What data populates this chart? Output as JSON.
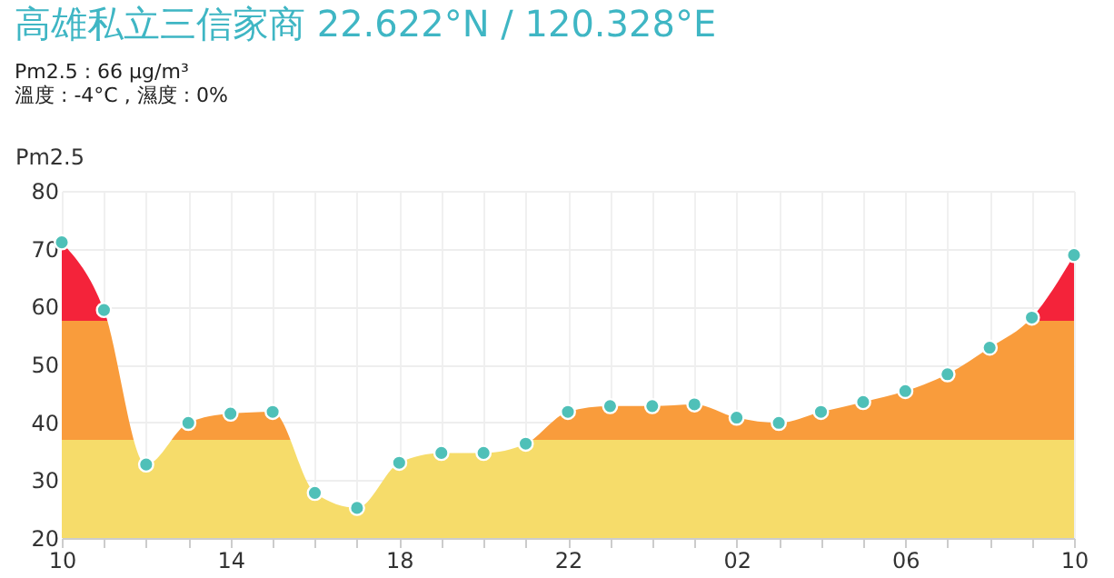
{
  "chart_data": {
    "type": "area",
    "title": "高雄私立三信家商   22.622°N / 120.328°E",
    "subtitle": "Pm2.5 : 66 μg/m³",
    "annotations": [
      "溫度 : -4°C , 濕度 : 0%"
    ],
    "ylabel": "Pm2.5",
    "categories": [
      "10",
      null,
      null,
      null,
      "14",
      null,
      null,
      null,
      "18",
      null,
      null,
      null,
      "22",
      null,
      null,
      null,
      "02",
      null,
      null,
      null,
      "06",
      null,
      null,
      null,
      "10"
    ],
    "series": [
      {
        "color": "#f99c3c",
        "values": [
          71.1,
          59.4,
          32.7,
          39.9,
          41.5,
          41.8,
          27.8,
          25.2,
          33,
          34.7,
          34.7,
          36.3,
          41.8,
          42.8,
          42.8,
          43.1,
          40.8,
          39.9,
          41.8,
          43.5,
          45.4,
          48.3,
          52.9,
          58.1,
          68.9
        ]
      }
    ],
    "ylim": [
      20,
      80
    ],
    "yticks": [
      20,
      30,
      40,
      50,
      60,
      70,
      80
    ],
    "grid": true,
    "marker": "circle"
  }
}
